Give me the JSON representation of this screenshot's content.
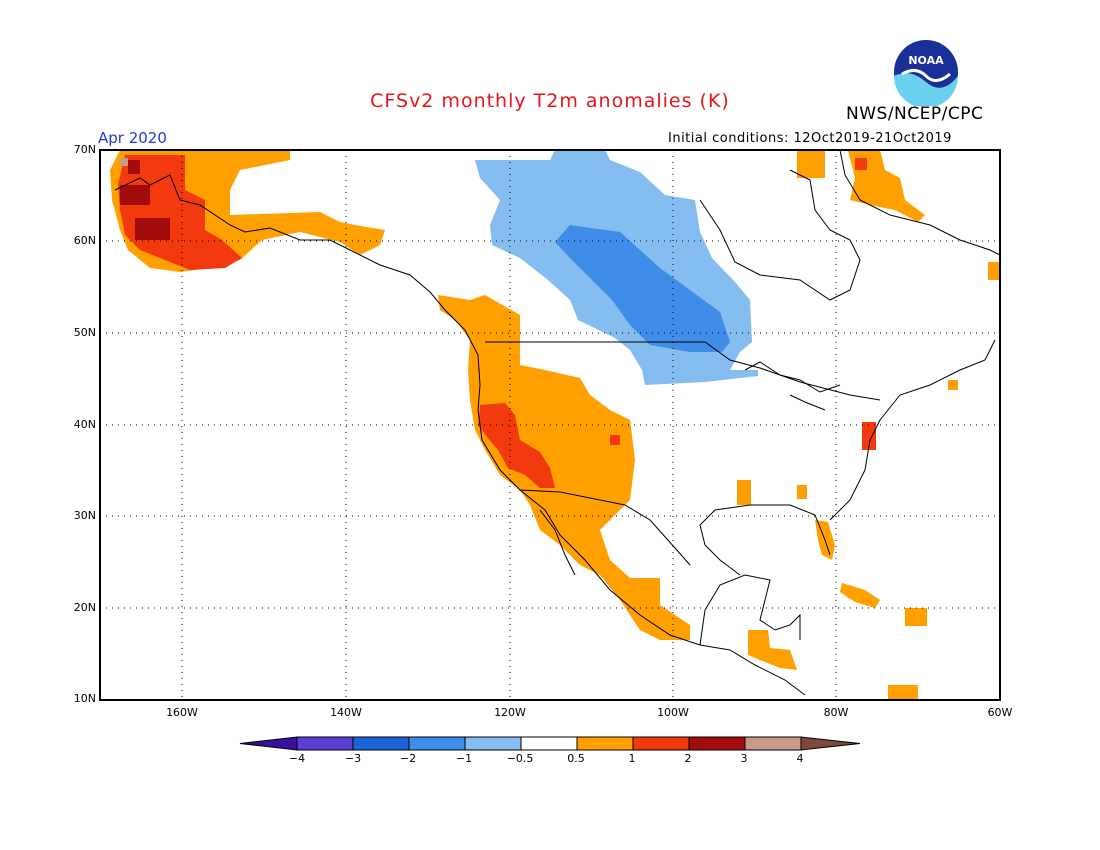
{
  "title": "CFSv2 monthly T2m anomalies (K)",
  "agency": "NWS/NCEP/CPC",
  "logo_text": "NOAA",
  "valid_month": "Apr 2020",
  "initial_conditions": "Initial conditions: 12Oct2019-21Oct2019",
  "lat_labels": [
    "70N",
    "60N",
    "50N",
    "40N",
    "30N",
    "20N",
    "10N"
  ],
  "lon_labels": [
    "160W",
    "140W",
    "120W",
    "100W",
    "80W",
    "60W"
  ],
  "colorbar": {
    "labels": [
      "−4",
      "−3",
      "−2",
      "−1",
      "−0.5",
      "0.5",
      "1",
      "2",
      "3",
      "4"
    ],
    "colors": {
      "below_-4": "#3a0f9b",
      "-4_-3": "#5a3ed6",
      "-3_-2": "#1c62d9",
      "-2_-1": "#3f8de8",
      "-1_-0.5": "#86bdf1",
      "-0.5_0.5": "#ffffff",
      "0.5_1": "#ff9f00",
      "1_2": "#f23a0e",
      "2_3": "#a30c0c",
      "3_4": "#c99a88",
      "above_4": "#7b4a38"
    }
  }
}
